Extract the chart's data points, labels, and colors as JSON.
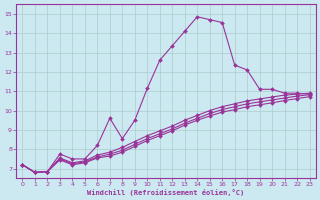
{
  "xlabel": "Windchill (Refroidissement éolien,°C)",
  "x_ticks": [
    0,
    1,
    2,
    3,
    4,
    5,
    6,
    7,
    8,
    9,
    10,
    11,
    12,
    13,
    14,
    15,
    16,
    17,
    18,
    19,
    20,
    21,
    22,
    23
  ],
  "y_ticks": [
    7,
    8,
    9,
    10,
    11,
    12,
    13,
    14,
    15
  ],
  "xlim": [
    -0.5,
    23.5
  ],
  "ylim": [
    6.5,
    15.5
  ],
  "bg_color": "#cce8f0",
  "line_color": "#993399",
  "grid_color": "#aacccc",
  "series": [
    {
      "x": [
        0,
        1,
        2,
        3,
        4,
        5,
        6,
        7,
        8,
        9,
        10,
        11,
        12,
        13,
        14,
        15,
        16,
        17,
        18,
        19,
        20,
        21,
        22,
        23
      ],
      "y": [
        7.2,
        6.8,
        6.85,
        7.75,
        7.5,
        7.5,
        8.2,
        9.6,
        8.55,
        9.5,
        11.15,
        12.6,
        13.35,
        14.1,
        14.85,
        14.7,
        14.55,
        12.35,
        12.1,
        11.1,
        11.1,
        10.9,
        10.9,
        10.85
      ],
      "marker": true
    },
    {
      "x": [
        0,
        1,
        2,
        3,
        4,
        5,
        6,
        7,
        8,
        9,
        10,
        11,
        12,
        13,
        14,
        15,
        16,
        17,
        18,
        19,
        20,
        21,
        22,
        23
      ],
      "y": [
        7.2,
        6.8,
        6.85,
        7.55,
        7.3,
        7.4,
        7.7,
        7.85,
        8.1,
        8.4,
        8.7,
        8.95,
        9.2,
        9.5,
        9.75,
        10.0,
        10.2,
        10.35,
        10.5,
        10.6,
        10.7,
        10.8,
        10.85,
        10.9
      ],
      "marker": true
    },
    {
      "x": [
        0,
        1,
        2,
        3,
        4,
        5,
        6,
        7,
        8,
        9,
        10,
        11,
        12,
        13,
        14,
        15,
        16,
        17,
        18,
        19,
        20,
        21,
        22,
        23
      ],
      "y": [
        7.2,
        6.8,
        6.85,
        7.5,
        7.25,
        7.35,
        7.6,
        7.75,
        7.95,
        8.25,
        8.55,
        8.8,
        9.05,
        9.35,
        9.6,
        9.85,
        10.05,
        10.2,
        10.35,
        10.45,
        10.55,
        10.65,
        10.75,
        10.82
      ],
      "marker": true
    },
    {
      "x": [
        0,
        1,
        2,
        3,
        4,
        5,
        6,
        7,
        8,
        9,
        10,
        11,
        12,
        13,
        14,
        15,
        16,
        17,
        18,
        19,
        20,
        21,
        22,
        23
      ],
      "y": [
        7.2,
        6.8,
        6.85,
        7.45,
        7.2,
        7.3,
        7.55,
        7.65,
        7.85,
        8.15,
        8.45,
        8.7,
        8.95,
        9.25,
        9.5,
        9.72,
        9.92,
        10.05,
        10.2,
        10.3,
        10.4,
        10.52,
        10.62,
        10.72
      ],
      "marker": true
    }
  ]
}
